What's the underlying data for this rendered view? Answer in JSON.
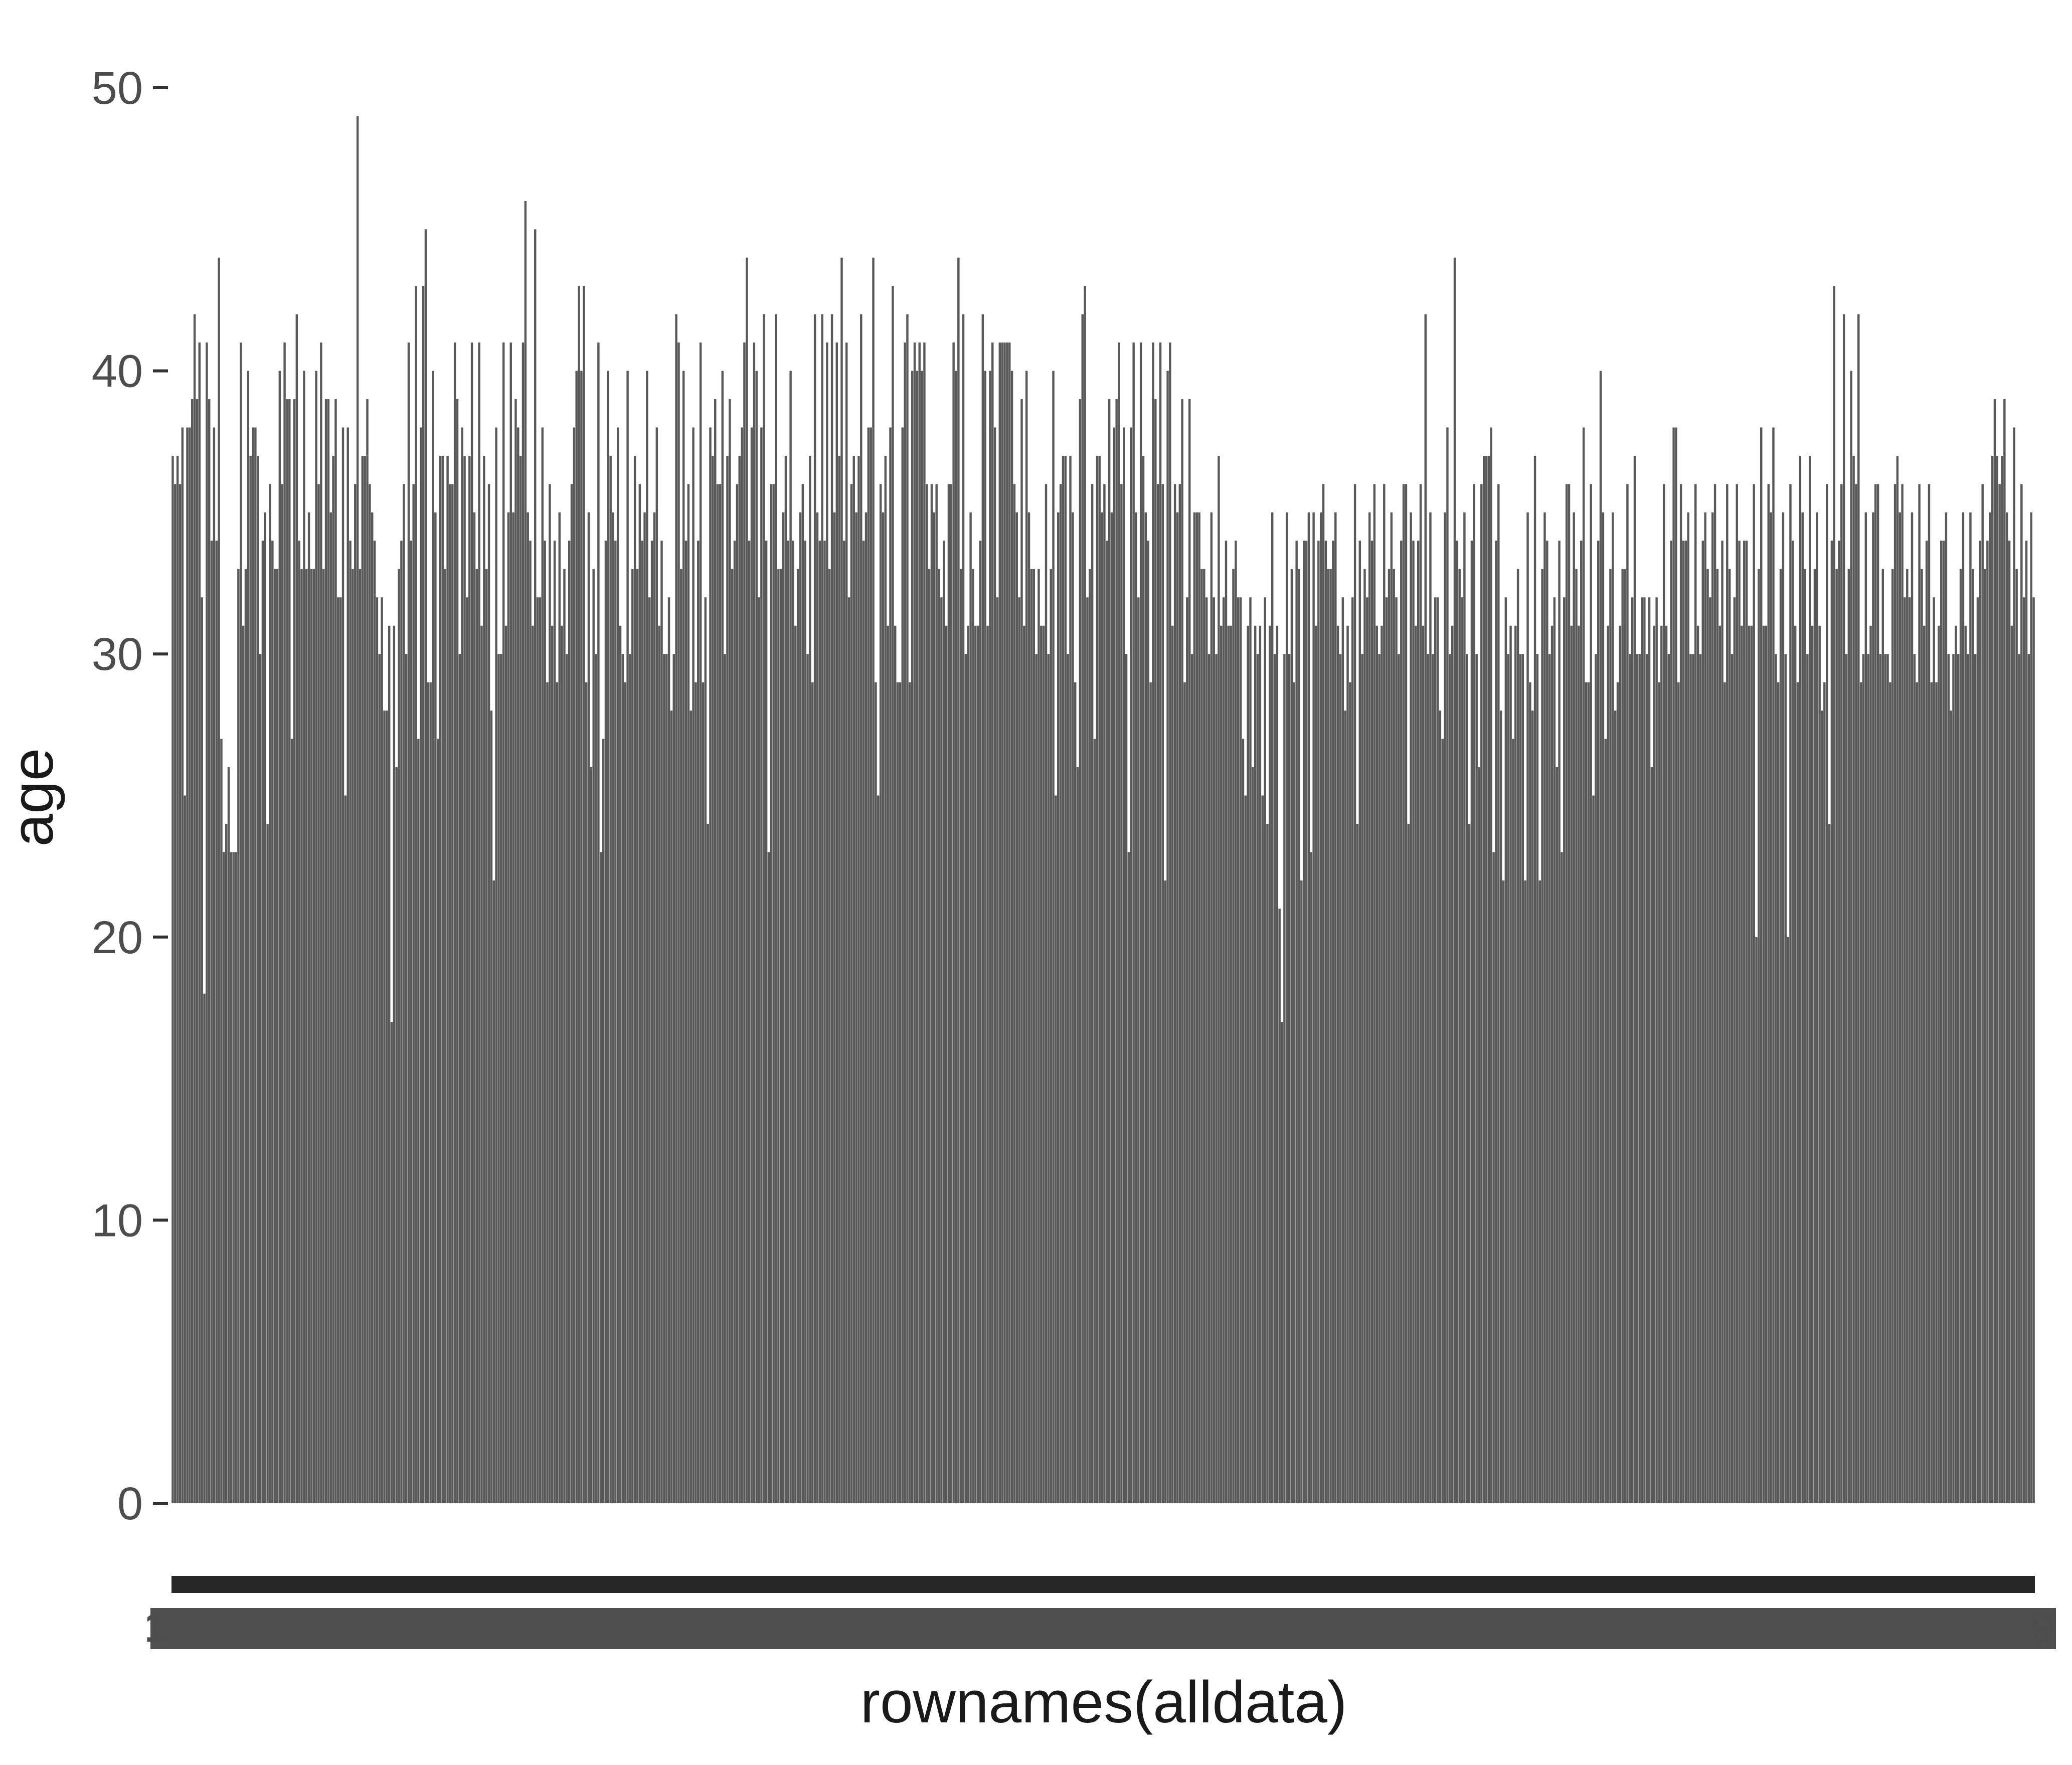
{
  "chart_data": {
    "type": "bar",
    "title": "",
    "xlabel": "rownames(alldata)",
    "ylabel": "age",
    "ylim": [
      0,
      50
    ],
    "yticks": [
      0,
      10,
      20,
      30,
      40,
      50
    ],
    "grid": false,
    "legend": "none",
    "bar_color": "#595959",
    "first_tick_label": "1",
    "last_tick_label": "9",
    "values": [
      37,
      36,
      37,
      36,
      38,
      25,
      38,
      38,
      39,
      42,
      39,
      41,
      32,
      18,
      41,
      39,
      34,
      38,
      34,
      44,
      27,
      23,
      24,
      26,
      23,
      23,
      23,
      33,
      41,
      31,
      33,
      40,
      37,
      38,
      38,
      37,
      30,
      34,
      35,
      24,
      36,
      34,
      33,
      33,
      40,
      36,
      41,
      39,
      39,
      27,
      39,
      42,
      34,
      33,
      40,
      33,
      35,
      33,
      33,
      40,
      36,
      41,
      33,
      39,
      39,
      35,
      37,
      39,
      32,
      32,
      38,
      25,
      38,
      34,
      33,
      36,
      49,
      33,
      37,
      37,
      39,
      36,
      35,
      34,
      32,
      30,
      32,
      28,
      28,
      31,
      17,
      31,
      26,
      33,
      34,
      36,
      30,
      41,
      34,
      36,
      43,
      27,
      38,
      43,
      45,
      29,
      29,
      40,
      35,
      27,
      37,
      37,
      33,
      37,
      36,
      36,
      41,
      39,
      30,
      38,
      37,
      32,
      37,
      41,
      35,
      33,
      41,
      31,
      37,
      33,
      36,
      28,
      22,
      38,
      30,
      30,
      41,
      31,
      35,
      41,
      35,
      39,
      38,
      37,
      41,
      46,
      35,
      34,
      31,
      45,
      32,
      32,
      38,
      34,
      29,
      36,
      31,
      34,
      29,
      35,
      31,
      33,
      30,
      34,
      36,
      38,
      40,
      43,
      40,
      43,
      29,
      35,
      26,
      33,
      30,
      41,
      23,
      27,
      34,
      40,
      37,
      35,
      34,
      38,
      31,
      30,
      29,
      40,
      30,
      33,
      37,
      33,
      36,
      34,
      35,
      40,
      32,
      34,
      35,
      38,
      31,
      34,
      30,
      30,
      32,
      28,
      30,
      42,
      41,
      33,
      40,
      34,
      36,
      28,
      38,
      29,
      34,
      41,
      29,
      32,
      24,
      38,
      37,
      39,
      36,
      36,
      40,
      30,
      37,
      39,
      33,
      34,
      36,
      37,
      38,
      41,
      44,
      34,
      38,
      41,
      40,
      32,
      38,
      42,
      34,
      23,
      36,
      36,
      42,
      33,
      33,
      35,
      37,
      34,
      40,
      34,
      31,
      33,
      35,
      36,
      34,
      30,
      37,
      29,
      42,
      35,
      34,
      42,
      34,
      41,
      33,
      42,
      35,
      41,
      37,
      44,
      34,
      41,
      32,
      36,
      37,
      35,
      37,
      42,
      34,
      35,
      38,
      38,
      44,
      29,
      25,
      36,
      35,
      37,
      31,
      38,
      43,
      31,
      29,
      29,
      38,
      41,
      42,
      29,
      40,
      41,
      40,
      41,
      40,
      41,
      36,
      33,
      36,
      35,
      36,
      33,
      32,
      34,
      31,
      36,
      36,
      41,
      40,
      44,
      33,
      42,
      30,
      31,
      35,
      33,
      31,
      31,
      34,
      42,
      40,
      31,
      40,
      41,
      38,
      32,
      41,
      41,
      41,
      41,
      41,
      40,
      36,
      35,
      32,
      39,
      31,
      40,
      35,
      33,
      33,
      30,
      33,
      31,
      31,
      36,
      30,
      33,
      40,
      25,
      35,
      36,
      37,
      37,
      30,
      37,
      35,
      29,
      26,
      39,
      42,
      43,
      32,
      33,
      36,
      27,
      37,
      37,
      35,
      36,
      34,
      39,
      35,
      38,
      39,
      41,
      36,
      38,
      30,
      23,
      38,
      41,
      35,
      32,
      41,
      37,
      35,
      34,
      29,
      41,
      39,
      36,
      41,
      36,
      22,
      40,
      41,
      31,
      36,
      35,
      36,
      39,
      29,
      32,
      39,
      30,
      35,
      35,
      35,
      33,
      33,
      32,
      30,
      35,
      32,
      30,
      37,
      31,
      32,
      34,
      31,
      31,
      33,
      34,
      32,
      32,
      27,
      25,
      31,
      32,
      26,
      31,
      30,
      31,
      25,
      32,
      24,
      31,
      35,
      30,
      31,
      21,
      17,
      30,
      35,
      30,
      33,
      29,
      34,
      33,
      22,
      34,
      34,
      35,
      23,
      35,
      31,
      34,
      35,
      36,
      34,
      33,
      33,
      34,
      35,
      31,
      30,
      32,
      28,
      31,
      29,
      32,
      36,
      24,
      34,
      30,
      33,
      32,
      35,
      34,
      36,
      31,
      30,
      31,
      36,
      32,
      33,
      35,
      33,
      32,
      30,
      34,
      36,
      36,
      24,
      35,
      34,
      31,
      34,
      36,
      31,
      42,
      30,
      35,
      30,
      32,
      32,
      28,
      27,
      35,
      38,
      30,
      31,
      44,
      34,
      33,
      32,
      35,
      30,
      24,
      34,
      36,
      30,
      26,
      36,
      37,
      37,
      37,
      38,
      23,
      34,
      36,
      28,
      22,
      32,
      30,
      31,
      27,
      31,
      33,
      30,
      30,
      22,
      35,
      29,
      28,
      37,
      30,
      22,
      33,
      35,
      34,
      30,
      31,
      32,
      26,
      34,
      23,
      32,
      36,
      36,
      31,
      35,
      33,
      31,
      34,
      38,
      29,
      29,
      36,
      25,
      30,
      34,
      40,
      35,
      27,
      31,
      33,
      35,
      28,
      29,
      31,
      33,
      33,
      36,
      30,
      32,
      37,
      30,
      30,
      32,
      32,
      30,
      32,
      26,
      31,
      32,
      29,
      31,
      36,
      31,
      30,
      34,
      38,
      38,
      29,
      36,
      34,
      34,
      35,
      30,
      30,
      36,
      31,
      30,
      34,
      35,
      33,
      32,
      35,
      36,
      33,
      31,
      34,
      29,
      36,
      33,
      30,
      32,
      36,
      34,
      31,
      34,
      34,
      31,
      31,
      36,
      20,
      33,
      38,
      31,
      31,
      36,
      35,
      38,
      30,
      29,
      33,
      35,
      30,
      20,
      36,
      34,
      31,
      29,
      37,
      35,
      33,
      30,
      37,
      31,
      33,
      35,
      31,
      28,
      29,
      36,
      24,
      34,
      43,
      33,
      34,
      36,
      42,
      30,
      33,
      40,
      37,
      36,
      42,
      29,
      30,
      35,
      30,
      31,
      35,
      36,
      36,
      30,
      33,
      30,
      30,
      29,
      33,
      36,
      37,
      35,
      36,
      32,
      33,
      32,
      35,
      30,
      29,
      36,
      33,
      31,
      34,
      36,
      29,
      32,
      29,
      31,
      34,
      34,
      35,
      30,
      28,
      30,
      31,
      30,
      33,
      35,
      31,
      30,
      35,
      33,
      30,
      32,
      34,
      36,
      33,
      34,
      35,
      37,
      39,
      37,
      36,
      37,
      39,
      35,
      34,
      31,
      38,
      33,
      30,
      36,
      32,
      34,
      30,
      35,
      32
    ]
  }
}
